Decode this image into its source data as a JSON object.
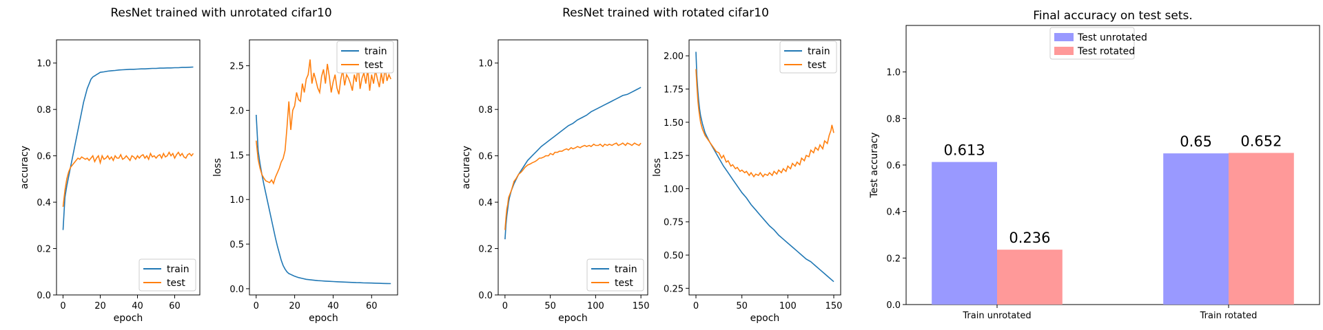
{
  "figure_titles": {
    "left": "ResNet trained with unrotated cifar10",
    "middle": "ResNet trained with rotated cifar10",
    "right": "Final accuracy on test sets."
  },
  "colors": {
    "train": "#1f77b4",
    "test": "#ff7f0e",
    "unrotated": "#9999ff",
    "rotated": "#ff9999"
  },
  "chart_data": [
    {
      "id": "unrot_acc",
      "type": "line",
      "xlabel": "epoch",
      "ylabel": "accuracy",
      "xlim": [
        -3.5,
        73.5
      ],
      "ylim": [
        0.0,
        1.1
      ],
      "xticks": [
        0,
        20,
        40,
        60
      ],
      "yticks": [
        0.0,
        0.2,
        0.4,
        0.6,
        0.8,
        1.0
      ],
      "ytick_labels": [
        "0.0",
        "0.2",
        "0.4",
        "0.6",
        "0.8",
        "1.0"
      ],
      "legend": "lower-right",
      "series": [
        {
          "name": "train",
          "color": "#1f77b4",
          "x": [
            0,
            1,
            2,
            3,
            4,
            5,
            6,
            7,
            8,
            9,
            10,
            11,
            12,
            13,
            14,
            15,
            16,
            17,
            18,
            19,
            20,
            22,
            24,
            26,
            28,
            30,
            32,
            34,
            36,
            38,
            40,
            42,
            44,
            46,
            48,
            50,
            52,
            54,
            56,
            58,
            60,
            62,
            64,
            66,
            68,
            70
          ],
          "y": [
            0.28,
            0.42,
            0.47,
            0.51,
            0.55,
            0.59,
            0.63,
            0.67,
            0.71,
            0.75,
            0.79,
            0.83,
            0.86,
            0.89,
            0.91,
            0.93,
            0.94,
            0.945,
            0.95,
            0.955,
            0.96,
            0.962,
            0.965,
            0.967,
            0.968,
            0.97,
            0.971,
            0.972,
            0.973,
            0.973,
            0.974,
            0.975,
            0.975,
            0.976,
            0.977,
            0.977,
            0.978,
            0.978,
            0.979,
            0.979,
            0.98,
            0.98,
            0.981,
            0.981,
            0.982,
            0.983
          ]
        },
        {
          "name": "test",
          "color": "#ff7f0e",
          "x": [
            0,
            1,
            2,
            3,
            4,
            5,
            6,
            7,
            8,
            9,
            10,
            11,
            12,
            13,
            14,
            15,
            16,
            17,
            18,
            19,
            20,
            21,
            22,
            23,
            24,
            25,
            26,
            27,
            28,
            29,
            30,
            31,
            32,
            33,
            34,
            35,
            36,
            37,
            38,
            39,
            40,
            41,
            42,
            43,
            44,
            45,
            46,
            47,
            48,
            49,
            50,
            51,
            52,
            53,
            54,
            55,
            56,
            57,
            58,
            59,
            60,
            61,
            62,
            63,
            64,
            65,
            66,
            67,
            68,
            69,
            70
          ],
          "y": [
            0.38,
            0.45,
            0.5,
            0.53,
            0.55,
            0.56,
            0.57,
            0.58,
            0.59,
            0.585,
            0.595,
            0.59,
            0.585,
            0.59,
            0.58,
            0.59,
            0.6,
            0.575,
            0.59,
            0.6,
            0.57,
            0.6,
            0.585,
            0.59,
            0.6,
            0.585,
            0.595,
            0.58,
            0.6,
            0.59,
            0.59,
            0.605,
            0.585,
            0.59,
            0.6,
            0.59,
            0.58,
            0.6,
            0.595,
            0.585,
            0.6,
            0.59,
            0.6,
            0.605,
            0.59,
            0.6,
            0.585,
            0.61,
            0.595,
            0.6,
            0.59,
            0.6,
            0.605,
            0.59,
            0.61,
            0.595,
            0.6,
            0.615,
            0.6,
            0.61,
            0.59,
            0.605,
            0.615,
            0.6,
            0.61,
            0.595,
            0.59,
            0.605,
            0.61,
            0.6,
            0.61
          ]
        }
      ]
    },
    {
      "id": "unrot_loss",
      "type": "line",
      "xlabel": "epoch",
      "ylabel": "loss",
      "xlim": [
        -3.5,
        73.5
      ],
      "ylim": [
        -0.07,
        2.79
      ],
      "xticks": [
        0,
        20,
        40,
        60
      ],
      "yticks": [
        0.0,
        0.5,
        1.0,
        1.5,
        2.0,
        2.5
      ],
      "ytick_labels": [
        "0.0",
        "0.5",
        "1.0",
        "1.5",
        "2.0",
        "2.5"
      ],
      "legend": "upper-right",
      "series": [
        {
          "name": "train",
          "color": "#1f77b4",
          "x": [
            0,
            1,
            2,
            3,
            4,
            5,
            6,
            7,
            8,
            9,
            10,
            11,
            12,
            13,
            14,
            15,
            16,
            17,
            18,
            19,
            20,
            22,
            24,
            26,
            28,
            30,
            32,
            34,
            36,
            38,
            40,
            42,
            44,
            46,
            48,
            50,
            52,
            54,
            56,
            58,
            60,
            62,
            64,
            66,
            68,
            70
          ],
          "y": [
            1.95,
            1.55,
            1.4,
            1.28,
            1.17,
            1.07,
            0.97,
            0.87,
            0.77,
            0.67,
            0.57,
            0.48,
            0.4,
            0.32,
            0.26,
            0.22,
            0.19,
            0.17,
            0.16,
            0.15,
            0.14,
            0.125,
            0.115,
            0.105,
            0.1,
            0.095,
            0.09,
            0.088,
            0.085,
            0.083,
            0.08,
            0.078,
            0.076,
            0.074,
            0.072,
            0.07,
            0.068,
            0.067,
            0.065,
            0.064,
            0.063,
            0.062,
            0.06,
            0.059,
            0.058,
            0.057
          ]
        },
        {
          "name": "test",
          "color": "#ff7f0e",
          "x": [
            0,
            1,
            2,
            3,
            4,
            5,
            6,
            7,
            8,
            9,
            10,
            11,
            12,
            13,
            14,
            15,
            16,
            17,
            18,
            19,
            20,
            21,
            22,
            23,
            24,
            25,
            26,
            27,
            28,
            29,
            30,
            31,
            32,
            33,
            34,
            35,
            36,
            37,
            38,
            39,
            40,
            41,
            42,
            43,
            44,
            45,
            46,
            47,
            48,
            49,
            50,
            51,
            52,
            53,
            54,
            55,
            56,
            57,
            58,
            59,
            60,
            61,
            62,
            63,
            64,
            65,
            66,
            67,
            68,
            69,
            70
          ],
          "y": [
            1.66,
            1.45,
            1.35,
            1.28,
            1.24,
            1.21,
            1.2,
            1.19,
            1.22,
            1.18,
            1.25,
            1.3,
            1.35,
            1.42,
            1.46,
            1.55,
            1.8,
            2.1,
            1.78,
            2.0,
            2.05,
            2.2,
            2.12,
            2.1,
            2.3,
            2.2,
            2.35,
            2.4,
            2.57,
            2.3,
            2.42,
            2.34,
            2.25,
            2.2,
            2.38,
            2.46,
            2.3,
            2.52,
            2.38,
            2.2,
            2.32,
            2.4,
            2.25,
            2.18,
            2.35,
            2.45,
            2.28,
            2.4,
            2.36,
            2.3,
            2.22,
            2.4,
            2.32,
            2.5,
            2.24,
            2.36,
            2.42,
            2.3,
            2.46,
            2.22,
            2.4,
            2.3,
            2.45,
            2.35,
            2.26,
            2.42,
            2.3,
            2.48,
            2.33,
            2.4,
            2.35
          ]
        }
      ]
    },
    {
      "id": "rot_acc",
      "type": "line",
      "xlabel": "epoch",
      "ylabel": "accuracy",
      "xlim": [
        -7.5,
        157.5
      ],
      "ylim": [
        0.0,
        1.1
      ],
      "xticks": [
        0,
        50,
        100,
        150
      ],
      "yticks": [
        0.0,
        0.2,
        0.4,
        0.6,
        0.8,
        1.0
      ],
      "ytick_labels": [
        "0.0",
        "0.2",
        "0.4",
        "0.6",
        "0.8",
        "1.0"
      ],
      "legend": "lower-right",
      "series": [
        {
          "name": "train",
          "color": "#1f77b4",
          "x": [
            0,
            1,
            2,
            3,
            4,
            5,
            7,
            10,
            15,
            20,
            25,
            30,
            35,
            40,
            45,
            50,
            55,
            60,
            65,
            70,
            75,
            80,
            85,
            90,
            95,
            100,
            105,
            110,
            115,
            120,
            125,
            130,
            135,
            140,
            145,
            150
          ],
          "y": [
            0.24,
            0.3,
            0.34,
            0.37,
            0.4,
            0.42,
            0.45,
            0.48,
            0.52,
            0.55,
            0.58,
            0.6,
            0.62,
            0.64,
            0.655,
            0.67,
            0.685,
            0.7,
            0.715,
            0.73,
            0.74,
            0.755,
            0.765,
            0.775,
            0.79,
            0.8,
            0.81,
            0.82,
            0.83,
            0.84,
            0.85,
            0.86,
            0.865,
            0.875,
            0.885,
            0.895
          ]
        },
        {
          "name": "test",
          "color": "#ff7f0e",
          "x": [
            0,
            1,
            2,
            3,
            4,
            5,
            7,
            10,
            12,
            15,
            18,
            20,
            22,
            25,
            28,
            30,
            33,
            35,
            38,
            40,
            43,
            45,
            48,
            50,
            53,
            55,
            58,
            60,
            63,
            65,
            68,
            70,
            73,
            75,
            78,
            80,
            83,
            85,
            88,
            90,
            93,
            95,
            98,
            100,
            103,
            105,
            108,
            110,
            113,
            115,
            118,
            120,
            123,
            125,
            128,
            130,
            133,
            135,
            138,
            140,
            143,
            145,
            148,
            150
          ],
          "y": [
            0.28,
            0.33,
            0.37,
            0.39,
            0.42,
            0.43,
            0.45,
            0.49,
            0.5,
            0.52,
            0.53,
            0.54,
            0.55,
            0.56,
            0.565,
            0.57,
            0.575,
            0.58,
            0.59,
            0.59,
            0.595,
            0.6,
            0.6,
            0.61,
            0.605,
            0.615,
            0.615,
            0.62,
            0.62,
            0.625,
            0.63,
            0.625,
            0.635,
            0.63,
            0.635,
            0.64,
            0.635,
            0.64,
            0.645,
            0.64,
            0.645,
            0.64,
            0.65,
            0.645,
            0.645,
            0.65,
            0.64,
            0.65,
            0.645,
            0.65,
            0.645,
            0.65,
            0.655,
            0.645,
            0.65,
            0.655,
            0.645,
            0.655,
            0.65,
            0.645,
            0.655,
            0.65,
            0.645,
            0.655
          ]
        }
      ]
    },
    {
      "id": "rot_loss",
      "type": "line",
      "xlabel": "epoch",
      "ylabel": "loss",
      "xlim": [
        -7.5,
        157.5
      ],
      "ylim": [
        0.2,
        2.12
      ],
      "xticks": [
        0,
        50,
        100,
        150
      ],
      "yticks": [
        0.25,
        0.5,
        0.75,
        1.0,
        1.25,
        1.5,
        1.75,
        2.0
      ],
      "ytick_labels": [
        "0.25",
        "0.50",
        "0.75",
        "1.00",
        "1.25",
        "1.50",
        "1.75",
        "2.00"
      ],
      "legend": "upper-right",
      "series": [
        {
          "name": "train",
          "color": "#1f77b4",
          "x": [
            0,
            1,
            2,
            3,
            4,
            5,
            7,
            10,
            15,
            20,
            25,
            30,
            35,
            40,
            45,
            50,
            55,
            60,
            65,
            70,
            75,
            80,
            85,
            90,
            95,
            100,
            105,
            110,
            115,
            120,
            125,
            130,
            135,
            140,
            145,
            150
          ],
          "y": [
            2.03,
            1.85,
            1.74,
            1.66,
            1.6,
            1.55,
            1.49,
            1.42,
            1.35,
            1.29,
            1.23,
            1.17,
            1.12,
            1.07,
            1.02,
            0.97,
            0.93,
            0.88,
            0.84,
            0.8,
            0.76,
            0.72,
            0.69,
            0.65,
            0.62,
            0.59,
            0.56,
            0.53,
            0.5,
            0.47,
            0.45,
            0.42,
            0.39,
            0.36,
            0.33,
            0.3
          ]
        },
        {
          "name": "test",
          "color": "#ff7f0e",
          "x": [
            0,
            1,
            2,
            3,
            4,
            5,
            7,
            10,
            12,
            15,
            18,
            20,
            22,
            25,
            28,
            30,
            33,
            35,
            38,
            40,
            43,
            45,
            48,
            50,
            53,
            55,
            58,
            60,
            63,
            65,
            68,
            70,
            73,
            75,
            78,
            80,
            83,
            85,
            88,
            90,
            93,
            95,
            98,
            100,
            103,
            105,
            108,
            110,
            113,
            115,
            118,
            120,
            123,
            125,
            128,
            130,
            133,
            135,
            138,
            140,
            143,
            145,
            147,
            148,
            150
          ],
          "y": [
            1.9,
            1.78,
            1.67,
            1.6,
            1.55,
            1.5,
            1.45,
            1.4,
            1.38,
            1.35,
            1.32,
            1.3,
            1.28,
            1.27,
            1.23,
            1.25,
            1.2,
            1.21,
            1.17,
            1.18,
            1.15,
            1.16,
            1.13,
            1.14,
            1.12,
            1.13,
            1.1,
            1.12,
            1.09,
            1.11,
            1.1,
            1.12,
            1.09,
            1.11,
            1.1,
            1.12,
            1.1,
            1.13,
            1.11,
            1.14,
            1.12,
            1.15,
            1.13,
            1.17,
            1.15,
            1.19,
            1.17,
            1.2,
            1.18,
            1.23,
            1.21,
            1.25,
            1.24,
            1.29,
            1.27,
            1.31,
            1.29,
            1.33,
            1.3,
            1.36,
            1.34,
            1.4,
            1.44,
            1.48,
            1.42
          ]
        }
      ]
    },
    {
      "id": "final_acc",
      "type": "bar",
      "title": "Final accuracy on test sets.",
      "ylabel": "Test accuracy",
      "ylim": [
        0.0,
        1.2
      ],
      "yticks": [
        0.0,
        0.2,
        0.4,
        0.6,
        0.8,
        1.0
      ],
      "ytick_labels": [
        "0.0",
        "0.2",
        "0.4",
        "0.6",
        "0.8",
        "1.0"
      ],
      "categories": [
        "Train unrotated",
        "Train rotated"
      ],
      "legend": "upper-center",
      "series": [
        {
          "name": "Test unrotated",
          "color": "#9999ff",
          "values": [
            0.613,
            0.65
          ],
          "labels": [
            "0.613",
            "0.65"
          ]
        },
        {
          "name": "Test rotated",
          "color": "#ff9999",
          "values": [
            0.236,
            0.652
          ],
          "labels": [
            "0.236",
            "0.652"
          ]
        }
      ]
    }
  ]
}
